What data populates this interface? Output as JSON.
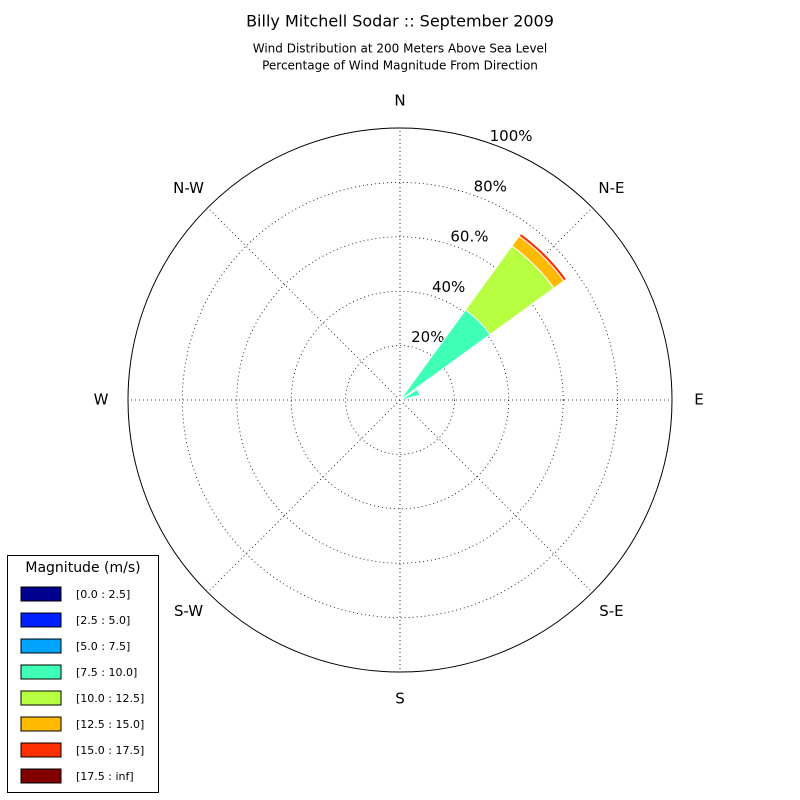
{
  "chart_data": {
    "type": "windrose",
    "title": "Billy Mitchell Sodar :: September 2009",
    "subtitle": [
      "Wind Distribution at 200 Meters Above Sea Level",
      "Percentage of Wind Magnitude From Direction"
    ],
    "categories": [
      "N",
      null,
      "N-E",
      null,
      "E",
      null,
      "S-E",
      null,
      "S",
      null,
      "S-W",
      null,
      "W",
      null,
      "N-W",
      null
    ],
    "ylim": [
      0,
      100
    ],
    "yticks": [
      {
        "value": 20,
        "label": "20%"
      },
      {
        "value": 40,
        "label": "40%"
      },
      {
        "value": 60,
        "label": "60.%"
      },
      {
        "value": 80,
        "label": "80%"
      },
      {
        "value": 100,
        "label": "100%"
      }
    ],
    "grid": true,
    "legend_title": "Magnitude (m/s)",
    "legend_position": "lower left",
    "series": [
      {
        "name": "[0.0 : 2.5]",
        "color": "#00008f",
        "values": [
          0,
          0,
          0,
          0,
          0,
          0,
          0,
          0,
          0,
          0,
          0,
          0,
          0,
          0,
          0,
          0
        ]
      },
      {
        "name": "[2.5 : 5.0]",
        "color": "#0020ff",
        "values": [
          0,
          0,
          0,
          0,
          0,
          0,
          0,
          0,
          0,
          0,
          0,
          0,
          0,
          0,
          0,
          0
        ]
      },
      {
        "name": "[5.0 : 7.5]",
        "color": "#00a4ff",
        "values": [
          0,
          0,
          0,
          0,
          0,
          0,
          0,
          0,
          0,
          0,
          0,
          0,
          0,
          0,
          0,
          0
        ]
      },
      {
        "name": "[7.5 : 10.0]",
        "color": "#40ffb7",
        "values": [
          0,
          0,
          41,
          7.5,
          0,
          0,
          0,
          0,
          0,
          0,
          0,
          0,
          0,
          0,
          0,
          0
        ]
      },
      {
        "name": "[10.0 : 12.5]",
        "color": "#b7ff40",
        "values": [
          0,
          0,
          29,
          0,
          0,
          0,
          0,
          0,
          0,
          0,
          0,
          0,
          0,
          0,
          0,
          0
        ]
      },
      {
        "name": "[12.5 : 15.0]",
        "color": "#ffb900",
        "values": [
          0,
          0,
          4.5,
          0,
          0,
          0,
          0,
          0,
          0,
          0,
          0,
          0,
          0,
          0,
          0,
          0
        ]
      },
      {
        "name": "[15.0 : 17.5]",
        "color": "#ff3000",
        "values": [
          0,
          0,
          1.2,
          0,
          0,
          0,
          0,
          0,
          0,
          0,
          0,
          0,
          0,
          0,
          0,
          0
        ]
      },
      {
        "name": "[17.5 : inf]",
        "color": "#800000",
        "values": [
          0,
          0,
          0,
          0,
          0,
          0,
          0,
          0,
          0,
          0,
          0,
          0,
          0,
          0,
          0,
          0
        ]
      }
    ]
  }
}
